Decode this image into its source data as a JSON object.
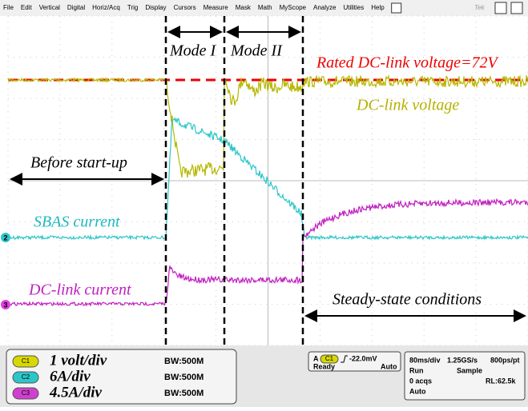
{
  "menu": [
    "File",
    "Edit",
    "Vertical",
    "Digital",
    "Horiz/Acq",
    "Trig",
    "Display",
    "Cursors",
    "Measure",
    "Mask",
    "Math",
    "MyScope",
    "Analyze",
    "Utilities",
    "Help"
  ],
  "brand": "Tek",
  "annotations": {
    "mode_1": "Mode I",
    "mode_2": "Mode II",
    "rated": "Rated DC-link voltage=72V",
    "dc_link_voltage": "DC-link voltage",
    "before": "Before start-up",
    "sbas": "SBAS current",
    "dc_link_current": "DC-link current",
    "steady": "Steady-state conditions"
  },
  "channel_markers": [
    "2",
    "3"
  ],
  "channels": [
    {
      "badge": "C1",
      "scale": "1 volt/div",
      "bandwidth": "BW:500M"
    },
    {
      "badge": "C2",
      "scale": "6A/div",
      "bandwidth": "BW:500M"
    },
    {
      "badge": "C3",
      "scale": "4.5A/div",
      "bandwidth": "BW:500M"
    }
  ],
  "trigger": {
    "source_type": "A",
    "source": "C1",
    "level": "-22.0mV",
    "state": "Ready",
    "mode": "Auto"
  },
  "acquisition": {
    "timebase": "80ms/div",
    "rate": "1.25GS/s",
    "resolution": "800ps/pt",
    "run": "Run",
    "sample": "Sample",
    "acqs": "0 acqs",
    "record": "RL:62.5k",
    "mode": "Auto"
  }
}
